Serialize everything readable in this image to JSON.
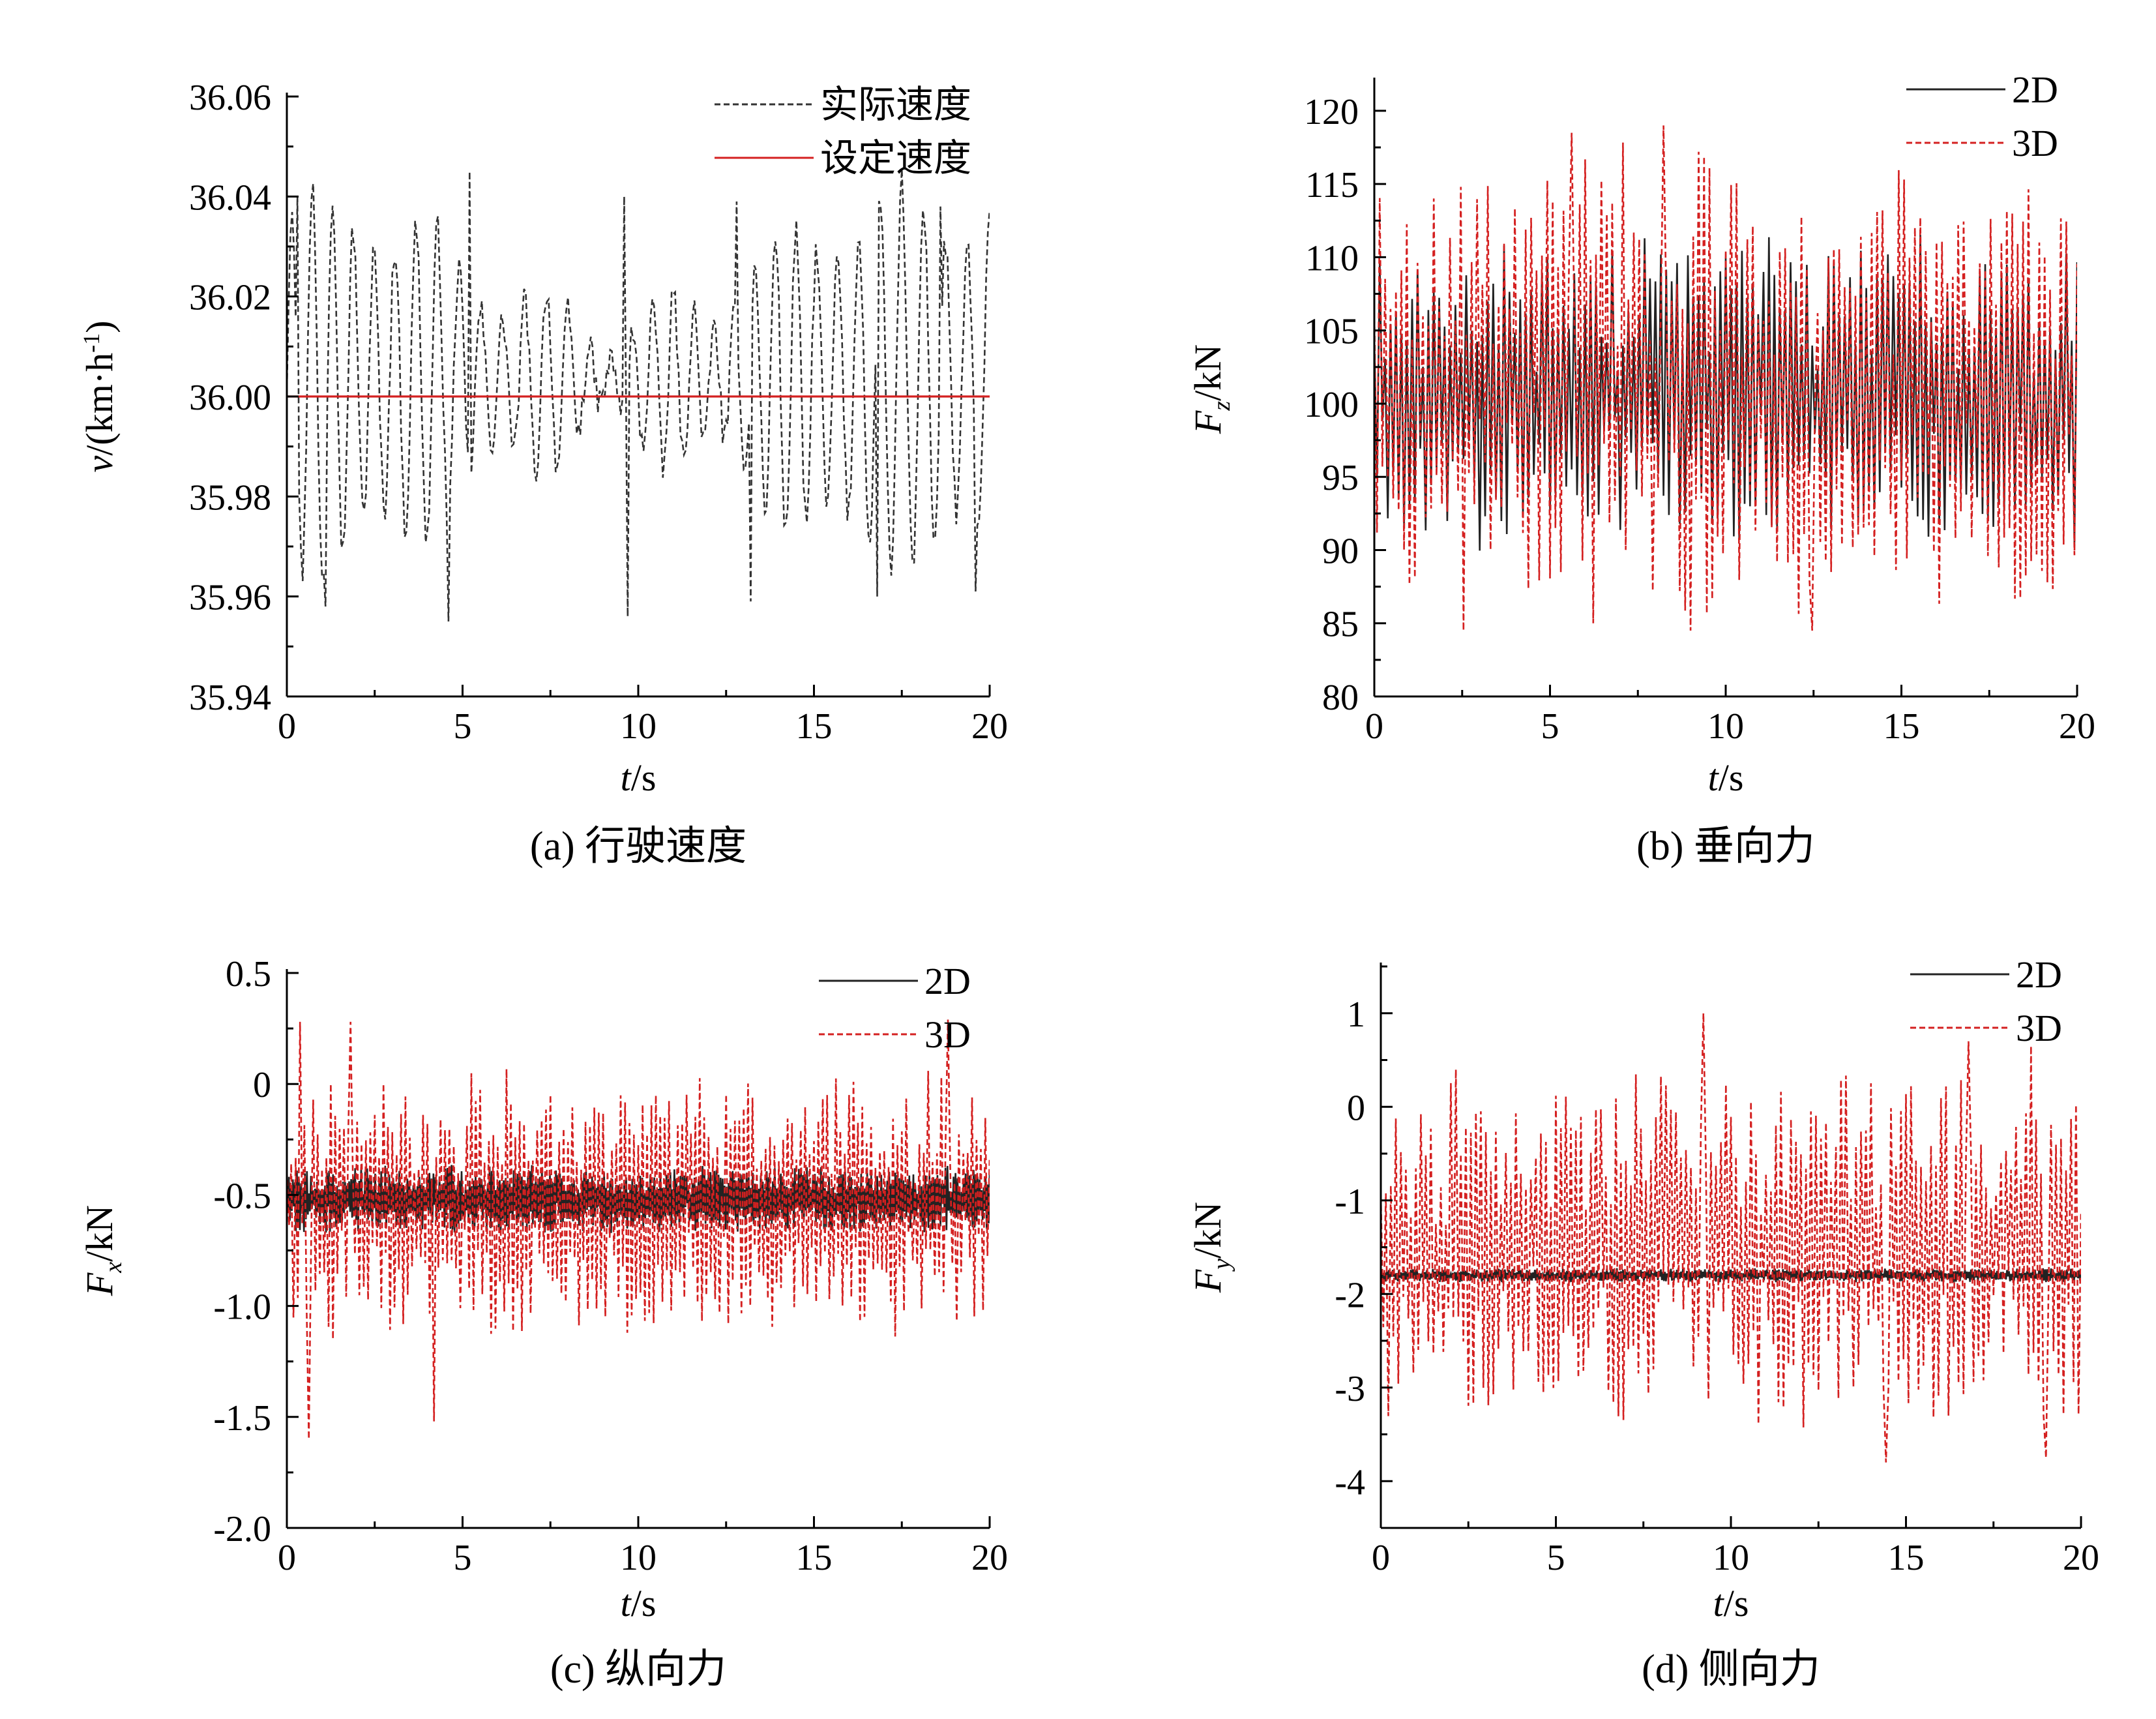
{
  "chart_data": [
    {
      "id": "a",
      "type": "line",
      "caption": "(a) 行驶速度",
      "xlabel_var": "t",
      "xlabel_unit": "/s",
      "ylabel_var": "v",
      "ylabel_unit": "/(km·h",
      "ylabel_sup": "-1",
      "ylabel_close": ")",
      "xlim": [
        0,
        20
      ],
      "ylim": [
        35.94,
        36.06
      ],
      "xticks": [
        0,
        5,
        10,
        15,
        20
      ],
      "xtick_labels": [
        "0",
        "5",
        "10",
        "15",
        "20"
      ],
      "yticks": [
        35.94,
        35.96,
        35.98,
        36.0,
        36.02,
        36.04,
        36.06
      ],
      "ytick_labels": [
        "35.94",
        "35.96",
        "35.98",
        "36.00",
        "36.02",
        "36.04",
        "36.06"
      ],
      "legend_position": "top-right",
      "series": [
        {
          "name": "实际速度",
          "color": "#333333",
          "style": "dashed",
          "gen": "speed",
          "peaks": [
            [
              0.3,
              36.04
            ],
            [
              5.2,
              36.045
            ],
            [
              9.6,
              36.04
            ],
            [
              12.8,
              36.039
            ],
            [
              16.8,
              36.039
            ],
            [
              18.6,
              36.038
            ]
          ],
          "troughs": [
            [
              1.1,
              35.958
            ],
            [
              4.6,
              35.955
            ],
            [
              9.7,
              35.956
            ],
            [
              13.2,
              35.959
            ],
            [
              16.8,
              35.96
            ],
            [
              19.6,
              35.961
            ]
          ]
        },
        {
          "name": "设定速度",
          "color": "#d42020",
          "style": "solid",
          "x": [
            0,
            20
          ],
          "y": [
            36.0,
            36.0
          ]
        }
      ]
    },
    {
      "id": "b",
      "type": "line",
      "caption": "(b) 垂向力",
      "xlabel_var": "t",
      "xlabel_unit": "/s",
      "ylabel_var": "F",
      "ylabel_sub": "z",
      "ylabel_unit": "/kN",
      "xlim": [
        0,
        20
      ],
      "ylim": [
        80,
        122
      ],
      "xticks": [
        0,
        5,
        10,
        15,
        20
      ],
      "xtick_labels": [
        "0",
        "5",
        "10",
        "15",
        "20"
      ],
      "yticks": [
        80,
        85,
        90,
        95,
        100,
        105,
        110,
        115,
        120
      ],
      "ytick_labels": [
        "80",
        "85",
        "90",
        "95",
        "100",
        "105",
        "110",
        "115",
        "120"
      ],
      "legend_position": "top-right",
      "series": [
        {
          "name": "2D",
          "color": "#222222",
          "style": "solid",
          "gen": "osc",
          "mean": 101,
          "amp": 8.5,
          "n": 260,
          "seed": 11,
          "min": 88,
          "max": 113
        },
        {
          "name": "3D",
          "color": "#d42020",
          "style": "dashed",
          "gen": "osc",
          "mean": 101,
          "amp": 13,
          "n": 260,
          "seed": 23,
          "min": 84.5,
          "max": 119,
          "extremes": [
            [
              5.6,
              118.5
            ],
            [
              8.2,
              119
            ],
            [
              12.5,
              84.5
            ],
            [
              6.2,
              85
            ]
          ]
        }
      ]
    },
    {
      "id": "c",
      "type": "line",
      "caption": "(c) 纵向力",
      "xlabel_var": "t",
      "xlabel_unit": "/s",
      "ylabel_var": "F",
      "ylabel_sub": "x",
      "ylabel_unit": "/kN",
      "xlim": [
        0,
        20
      ],
      "ylim": [
        -2.0,
        0.5
      ],
      "xticks": [
        0,
        5,
        10,
        15,
        20
      ],
      "xtick_labels": [
        "0",
        "5",
        "10",
        "15",
        "20"
      ],
      "yticks": [
        -2.0,
        -1.5,
        -1.0,
        -0.5,
        0,
        0.5
      ],
      "ytick_labels": [
        "-2.0",
        "-1.5",
        "-1.0",
        "-0.5",
        "0",
        "0.5"
      ],
      "legend_position": "top-right",
      "series": [
        {
          "name": "2D",
          "color": "#222222",
          "style": "solid",
          "gen": "osc",
          "mean": -0.52,
          "amp": 0.12,
          "n": 700,
          "seed": 5,
          "min": -0.78,
          "max": -0.28
        },
        {
          "name": "3D",
          "color": "#d42020",
          "style": "dashed",
          "gen": "osc",
          "mean": -0.55,
          "amp": 0.48,
          "n": 320,
          "seed": 31,
          "min": -1.6,
          "max": 0.3,
          "extremes": [
            [
              0.4,
              0.28
            ],
            [
              1.8,
              0.28
            ],
            [
              0.6,
              -1.6
            ],
            [
              4.2,
              -1.52
            ],
            [
              18.8,
              0.29
            ]
          ]
        }
      ]
    },
    {
      "id": "d",
      "type": "line",
      "caption": "(d) 侧向力",
      "xlabel_var": "t",
      "xlabel_unit": "/s",
      "ylabel_var": "F",
      "ylabel_sub": "y",
      "ylabel_unit": "/kN",
      "xlim": [
        0,
        20
      ],
      "ylim": [
        -4.5,
        1.5
      ],
      "xticks": [
        0,
        5,
        10,
        15,
        20
      ],
      "xtick_labels": [
        "0",
        "5",
        "10",
        "15",
        "20"
      ],
      "yticks": [
        -4,
        -3,
        -2,
        -1,
        0,
        1
      ],
      "ytick_labels": [
        "-4",
        "-3",
        "-2",
        "-1",
        "0",
        "1"
      ],
      "legend_position": "top-right",
      "series": [
        {
          "name": "2D",
          "color": "#222222",
          "style": "solid",
          "gen": "osc",
          "mean": -1.8,
          "amp": 0.06,
          "n": 700,
          "seed": 7,
          "min": -1.95,
          "max": -1.62
        },
        {
          "name": "3D",
          "color": "#d42020",
          "style": "dashed",
          "gen": "osc",
          "mean": -1.5,
          "amp": 1.5,
          "n": 280,
          "seed": 43,
          "min": -3.8,
          "max": 1.0,
          "extremes": [
            [
              9.2,
              1.0
            ],
            [
              16.8,
              0.7
            ],
            [
              14.4,
              -3.8
            ],
            [
              19.0,
              -3.75
            ],
            [
              18.6,
              0.65
            ]
          ]
        }
      ]
    }
  ]
}
